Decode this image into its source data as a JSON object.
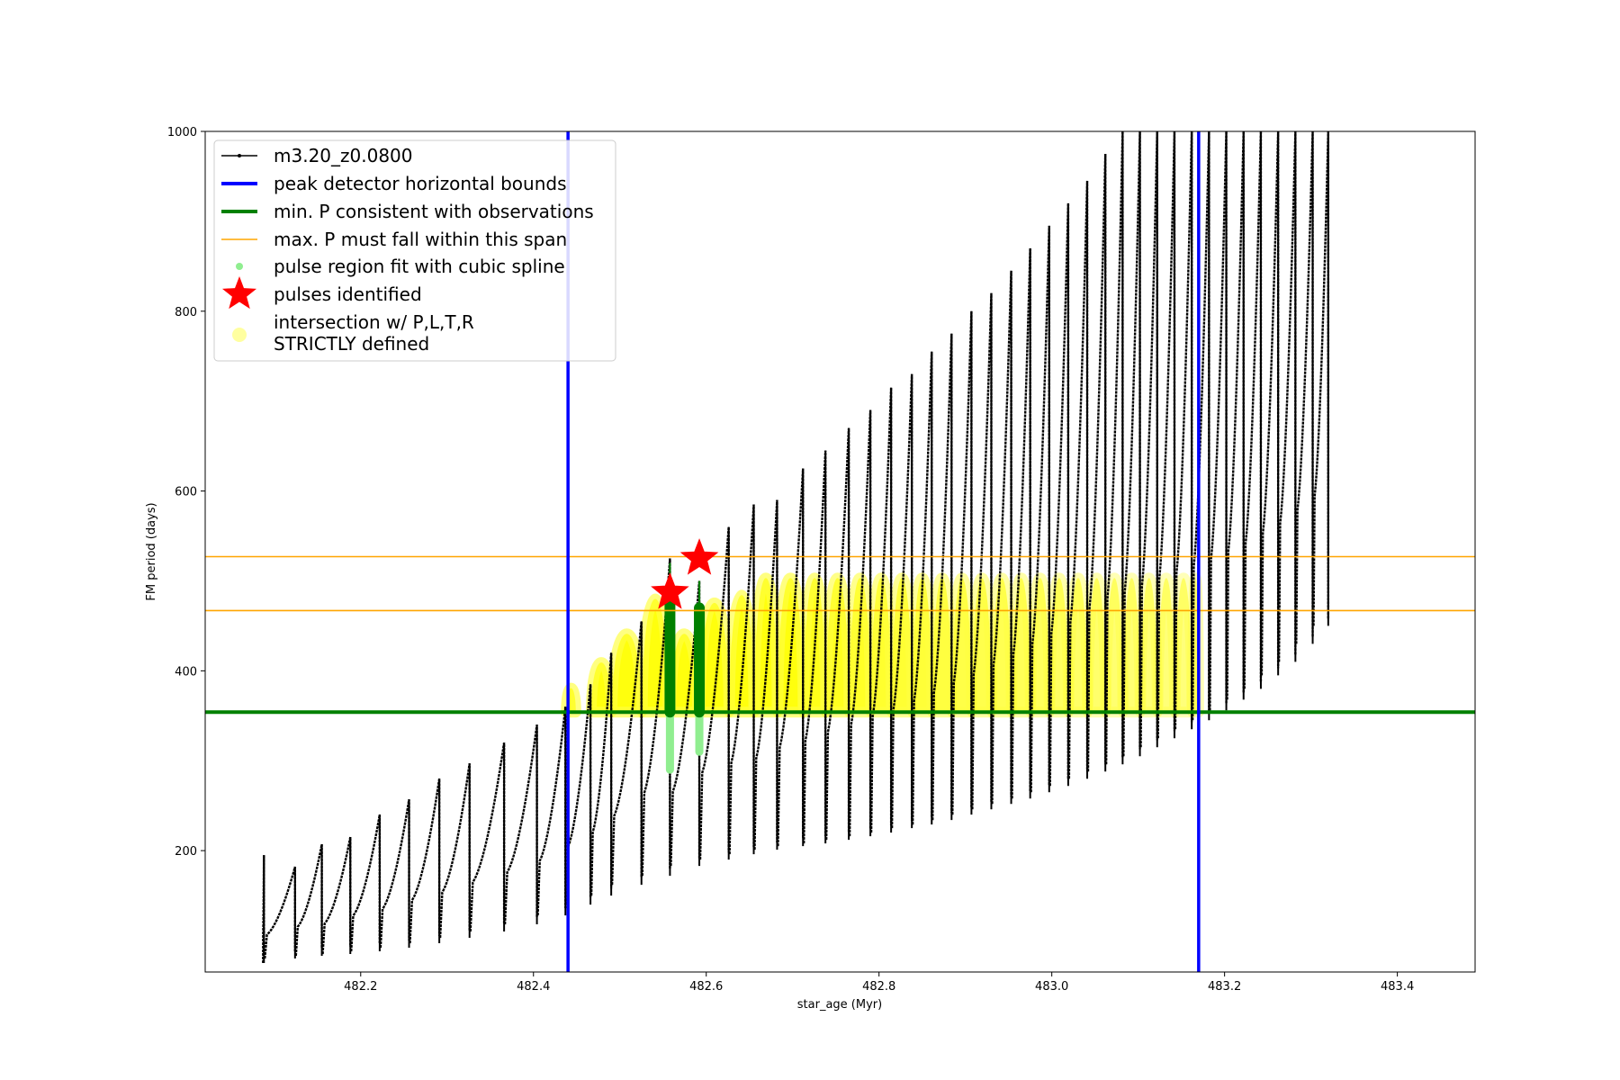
{
  "chart_data": {
    "type": "line",
    "xlabel": "star_age (Myr)",
    "ylabel": "FM period (days)",
    "xlim": [
      482.02,
      483.49
    ],
    "ylim": [
      65,
      1000
    ],
    "xticks": [
      482.2,
      482.4,
      482.6,
      482.8,
      483.0,
      483.2,
      483.4
    ],
    "xtick_labels": [
      "482.2",
      "482.4",
      "482.6",
      "482.8",
      "483.0",
      "483.2",
      "483.4"
    ],
    "yticks": [
      200,
      400,
      600,
      800,
      1000
    ],
    "ytick_labels": [
      "200",
      "400",
      "600",
      "800",
      "1000"
    ],
    "legend_position": "upper-left",
    "legend": [
      {
        "label": "m3.20_z0.0800",
        "kind": "line-marker",
        "color": "#000000"
      },
      {
        "label": "peak detector horizontal bounds",
        "kind": "line",
        "color": "#0000ff"
      },
      {
        "label": "min. P consistent with observations",
        "kind": "line",
        "color": "#008000"
      },
      {
        "label": "max. P must fall within this span",
        "kind": "thin-line",
        "color": "#ffa500"
      },
      {
        "label": "pulse region fit with cubic spline",
        "kind": "dot",
        "color": "#90ee90"
      },
      {
        "label": "pulses identified",
        "kind": "star",
        "color": "#ff0000"
      },
      {
        "label_lines": [
          "intersection w/ P,L,T,R",
          "STRICTLY defined"
        ],
        "kind": "big-dot",
        "color": "#ffffa0"
      }
    ],
    "reference_lines": {
      "vertical_blue": [
        482.44,
        483.17
      ],
      "horizontal_green": 354,
      "horizontal_orange": [
        467,
        527
      ]
    },
    "series": [
      {
        "name": "m3.20_z0.0800",
        "kind": "sawtooth-pulses",
        "pulses": [
          {
            "x0": 482.087,
            "x1": 482.088,
            "min": 75,
            "max": 195
          },
          {
            "x0": 482.089,
            "x1": 482.124,
            "min": 80,
            "max": 182
          },
          {
            "x0": 482.125,
            "x1": 482.155,
            "min": 83,
            "max": 207
          },
          {
            "x0": 482.156,
            "x1": 482.188,
            "min": 85,
            "max": 215
          },
          {
            "x0": 482.189,
            "x1": 482.222,
            "min": 88,
            "max": 240
          },
          {
            "x0": 482.223,
            "x1": 482.256,
            "min": 92,
            "max": 257
          },
          {
            "x0": 482.257,
            "x1": 482.291,
            "min": 97,
            "max": 280
          },
          {
            "x0": 482.292,
            "x1": 482.326,
            "min": 103,
            "max": 297
          },
          {
            "x0": 482.327,
            "x1": 482.366,
            "min": 110,
            "max": 320
          },
          {
            "x0": 482.367,
            "x1": 482.404,
            "min": 118,
            "max": 340
          },
          {
            "x0": 482.405,
            "x1": 482.437,
            "min": 128,
            "max": 360
          },
          {
            "x0": 482.438,
            "x1": 482.466,
            "min": 140,
            "max": 385
          },
          {
            "x0": 482.467,
            "x1": 482.49,
            "min": 150,
            "max": 420
          },
          {
            "x0": 482.491,
            "x1": 482.525,
            "min": 162,
            "max": 455
          },
          {
            "x0": 482.526,
            "x1": 482.558,
            "min": 172,
            "max": 525
          },
          {
            "x0": 482.559,
            "x1": 482.592,
            "min": 183,
            "max": 500
          },
          {
            "x0": 482.593,
            "x1": 482.626,
            "min": 190,
            "max": 560
          },
          {
            "x0": 482.627,
            "x1": 482.655,
            "min": 196,
            "max": 585
          },
          {
            "x0": 482.656,
            "x1": 482.682,
            "min": 201,
            "max": 590
          },
          {
            "x0": 482.683,
            "x1": 482.712,
            "min": 205,
            "max": 625
          },
          {
            "x0": 482.713,
            "x1": 482.738,
            "min": 208,
            "max": 645
          },
          {
            "x0": 482.739,
            "x1": 482.765,
            "min": 212,
            "max": 670
          },
          {
            "x0": 482.766,
            "x1": 482.79,
            "min": 216,
            "max": 690
          },
          {
            "x0": 482.791,
            "x1": 482.814,
            "min": 220,
            "max": 715
          },
          {
            "x0": 482.815,
            "x1": 482.838,
            "min": 225,
            "max": 730
          },
          {
            "x0": 482.839,
            "x1": 482.861,
            "min": 229,
            "max": 755
          },
          {
            "x0": 482.862,
            "x1": 482.884,
            "min": 234,
            "max": 775
          },
          {
            "x0": 482.885,
            "x1": 482.907,
            "min": 240,
            "max": 800
          },
          {
            "x0": 482.908,
            "x1": 482.93,
            "min": 246,
            "max": 820
          },
          {
            "x0": 482.931,
            "x1": 482.953,
            "min": 252,
            "max": 845
          },
          {
            "x0": 482.954,
            "x1": 482.975,
            "min": 258,
            "max": 870
          },
          {
            "x0": 482.976,
            "x1": 482.997,
            "min": 265,
            "max": 895
          },
          {
            "x0": 482.998,
            "x1": 483.019,
            "min": 272,
            "max": 920
          },
          {
            "x0": 483.02,
            "x1": 483.041,
            "min": 280,
            "max": 945
          },
          {
            "x0": 483.042,
            "x1": 483.062,
            "min": 288,
            "max": 975
          },
          {
            "x0": 483.063,
            "x1": 483.082,
            "min": 296,
            "max": 1000
          },
          {
            "x0": 483.083,
            "x1": 483.102,
            "min": 305,
            "max": 1000
          },
          {
            "x0": 483.103,
            "x1": 483.122,
            "min": 315,
            "max": 1000
          },
          {
            "x0": 483.123,
            "x1": 483.142,
            "min": 325,
            "max": 1000
          },
          {
            "x0": 483.143,
            "x1": 483.162,
            "min": 335,
            "max": 1000
          },
          {
            "x0": 483.163,
            "x1": 483.182,
            "min": 345,
            "max": 1000
          },
          {
            "x0": 483.183,
            "x1": 483.202,
            "min": 356,
            "max": 1000
          },
          {
            "x0": 483.203,
            "x1": 483.222,
            "min": 368,
            "max": 1000
          },
          {
            "x0": 483.223,
            "x1": 483.242,
            "min": 380,
            "max": 1000
          },
          {
            "x0": 483.243,
            "x1": 483.262,
            "min": 395,
            "max": 1000
          },
          {
            "x0": 483.263,
            "x1": 483.282,
            "min": 410,
            "max": 1000
          },
          {
            "x0": 483.283,
            "x1": 483.302,
            "min": 430,
            "max": 1000
          },
          {
            "x0": 483.303,
            "x1": 483.32,
            "min": 450,
            "max": 1000
          }
        ]
      },
      {
        "name": "pulse region fit with cubic spline",
        "kind": "vertical-spans",
        "color": "#90ee90",
        "spans": [
          {
            "x": 482.558,
            "y0": 290,
            "y1": 440
          },
          {
            "x": 482.592,
            "y0": 310,
            "y1": 450
          }
        ]
      },
      {
        "name": "pulses identified",
        "kind": "stars",
        "color": "#ff0000",
        "points": [
          {
            "x": 482.558,
            "y": 487
          },
          {
            "x": 482.592,
            "y": 525
          }
        ]
      },
      {
        "name": "intersection w/ P,L,T,R STRICTLY defined",
        "kind": "yellow-arches",
        "arches": [
          {
            "x0": 482.438,
            "x1": 482.449,
            "top": 385,
            "alpha": 0.95
          },
          {
            "x0": 482.467,
            "x1": 482.49,
            "top": 418,
            "alpha": 0.95
          },
          {
            "x0": 482.491,
            "x1": 482.525,
            "top": 455,
            "alpha": 0.95
          },
          {
            "x0": 482.526,
            "x1": 482.556,
            "top": 500,
            "alpha": 0.95
          },
          {
            "x0": 482.559,
            "x1": 482.59,
            "top": 455,
            "alpha": 0.95
          },
          {
            "x0": 482.593,
            "x1": 482.626,
            "top": 495,
            "alpha": 0.95
          },
          {
            "x0": 482.627,
            "x1": 482.655,
            "top": 505,
            "alpha": 0.95
          },
          {
            "x0": 482.656,
            "x1": 482.682,
            "top": 527,
            "alpha": 0.95
          },
          {
            "x0": 482.683,
            "x1": 482.712,
            "top": 527,
            "alpha": 0.95
          },
          {
            "x0": 482.713,
            "x1": 482.738,
            "top": 527,
            "alpha": 0.9
          },
          {
            "x0": 482.739,
            "x1": 482.765,
            "top": 527,
            "alpha": 0.88
          },
          {
            "x0": 482.766,
            "x1": 482.79,
            "top": 527,
            "alpha": 0.85
          },
          {
            "x0": 482.791,
            "x1": 482.814,
            "top": 527,
            "alpha": 0.82
          },
          {
            "x0": 482.815,
            "x1": 482.838,
            "top": 527,
            "alpha": 0.8
          },
          {
            "x0": 482.839,
            "x1": 482.861,
            "top": 527,
            "alpha": 0.78
          },
          {
            "x0": 482.862,
            "x1": 482.884,
            "top": 527,
            "alpha": 0.75
          },
          {
            "x0": 482.885,
            "x1": 482.907,
            "top": 527,
            "alpha": 0.72
          },
          {
            "x0": 482.908,
            "x1": 482.93,
            "top": 527,
            "alpha": 0.7
          },
          {
            "x0": 482.931,
            "x1": 482.953,
            "top": 527,
            "alpha": 0.68
          },
          {
            "x0": 482.954,
            "x1": 482.975,
            "top": 527,
            "alpha": 0.66
          },
          {
            "x0": 482.976,
            "x1": 482.997,
            "top": 527,
            "alpha": 0.64
          },
          {
            "x0": 482.998,
            "x1": 483.019,
            "top": 527,
            "alpha": 0.62
          },
          {
            "x0": 483.02,
            "x1": 483.041,
            "top": 527,
            "alpha": 0.6
          },
          {
            "x0": 483.042,
            "x1": 483.062,
            "top": 527,
            "alpha": 0.58
          },
          {
            "x0": 483.063,
            "x1": 483.082,
            "top": 527,
            "alpha": 0.56
          },
          {
            "x0": 483.083,
            "x1": 483.102,
            "top": 527,
            "alpha": 0.55
          },
          {
            "x0": 483.103,
            "x1": 483.122,
            "top": 527,
            "alpha": 0.54
          },
          {
            "x0": 483.123,
            "x1": 483.142,
            "top": 527,
            "alpha": 0.53
          },
          {
            "x0": 483.143,
            "x1": 483.162,
            "top": 527,
            "alpha": 0.52
          },
          {
            "x0": 483.163,
            "x1": 483.17,
            "top": 527,
            "alpha": 0.5
          }
        ]
      },
      {
        "name": "identified pulse peaks",
        "kind": "green-bars",
        "color": "#008000",
        "bars": [
          {
            "x": 482.558,
            "y0": 354,
            "y1": 520
          },
          {
            "x": 482.592,
            "y0": 354,
            "y1": 500
          }
        ]
      }
    ]
  }
}
